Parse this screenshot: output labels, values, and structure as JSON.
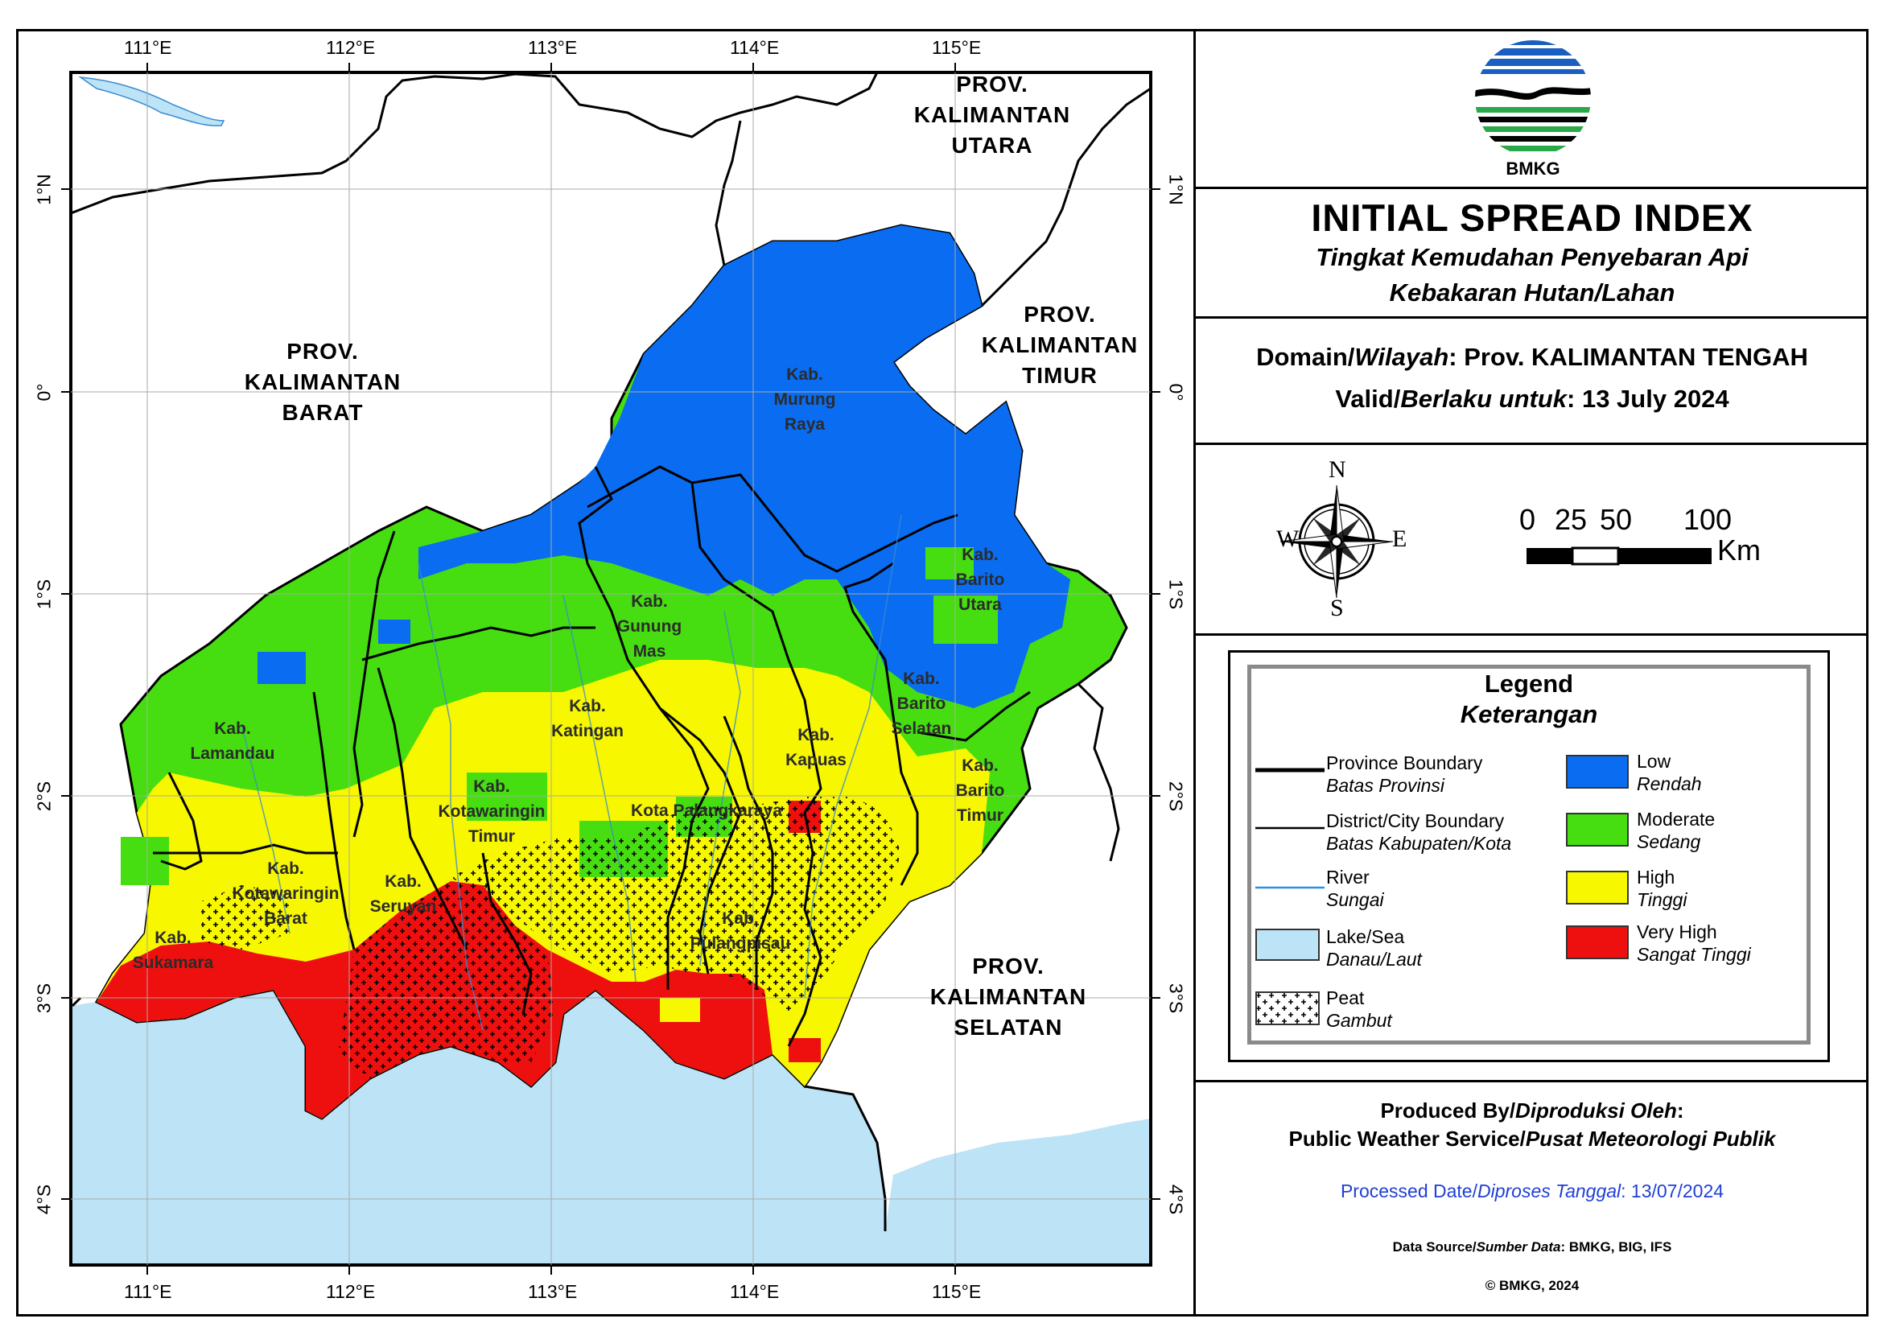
{
  "lon_labels": [
    "111°E",
    "112°E",
    "113°E",
    "114°E",
    "115°E"
  ],
  "lat_labels": [
    "1°N",
    "0°",
    "1°S",
    "2°S",
    "3°S",
    "4°S"
  ],
  "provinces": {
    "utara": "PROV. KALIMANTAN UTARA",
    "barat": "PROV. KALIMANTAN BARAT",
    "timur": "PROV. KALIMANTAN TIMUR",
    "selatan": "PROV. KALIMANTAN SELATAN"
  },
  "districts": [
    "Kab. Murung Raya",
    "Kab. Gunung Mas",
    "Kab. Barito Utara",
    "Kab. Barito Selatan",
    "Kab. Barito Timur",
    "Kab. Kapuas",
    "Kab. Katingan",
    "Kab. Lamandau",
    "Kab. Kotawaringin Timur",
    "Kota Palangkaraya",
    "Kab. Kotawaringin Barat",
    "Kab. Seruyan",
    "Kab. Pulangpisau",
    "Kab. Sukamara"
  ],
  "logo": {
    "text": "BMKG"
  },
  "header": {
    "title": "INITIAL SPREAD INDEX",
    "subtitle1": "Tingkat Kemudahan Penyebaran Api",
    "subtitle2": "Kebakaran Hutan/Lahan"
  },
  "domain": {
    "label_en": "Domain/",
    "label_id": "Wilayah",
    "value": ": Prov. KALIMANTAN TENGAH"
  },
  "valid": {
    "label_en": "Valid/",
    "label_id": "Berlaku untuk",
    "value": ": 13 July 2024"
  },
  "compass": {
    "n": "N",
    "s": "S",
    "e": "E",
    "w": "W"
  },
  "scale": {
    "t0": "0",
    "t1": "25",
    "t2": "50",
    "t3": "100",
    "unit": "Km"
  },
  "legend": {
    "title": "Legend",
    "subtitle": "Keterangan",
    "lines": [
      {
        "en": "Province Boundary",
        "id": "Batas Provinsi"
      },
      {
        "en": "District/City Boundary",
        "id": "Batas Kabupaten/Kota"
      },
      {
        "en": "River",
        "id": "Sungai"
      },
      {
        "en": "Lake/Sea",
        "id": "Danau/Laut"
      },
      {
        "en": "Peat",
        "id": "Gambut"
      }
    ],
    "classes": [
      {
        "en": "Low",
        "id": "Rendah",
        "color": "#0a6cf0"
      },
      {
        "en": "Moderate",
        "id": "Sedang",
        "color": "#46de10"
      },
      {
        "en": "High",
        "id": "Tinggi",
        "color": "#f7f700"
      },
      {
        "en": "Very High",
        "id": "Sangat Tinggi",
        "color": "#ee0f0f"
      }
    ],
    "sea_color": "#bde3f7"
  },
  "producer": {
    "line1_en": "Produced By/",
    "line1_id": "Diproduksi Oleh",
    "line1_end": ":",
    "line2_en": "Public Weather Service/",
    "line2_id": "Pusat Meteorologi Publik"
  },
  "processed": {
    "en": "Processed Date/",
    "id": "Diproses Tanggal",
    "value": ": 13/07/2024"
  },
  "source": {
    "en": "Data Source/",
    "id": "Sumber Data",
    "value": ": BMKG, BIG, IFS"
  },
  "copyright": "© BMKG, 2024"
}
